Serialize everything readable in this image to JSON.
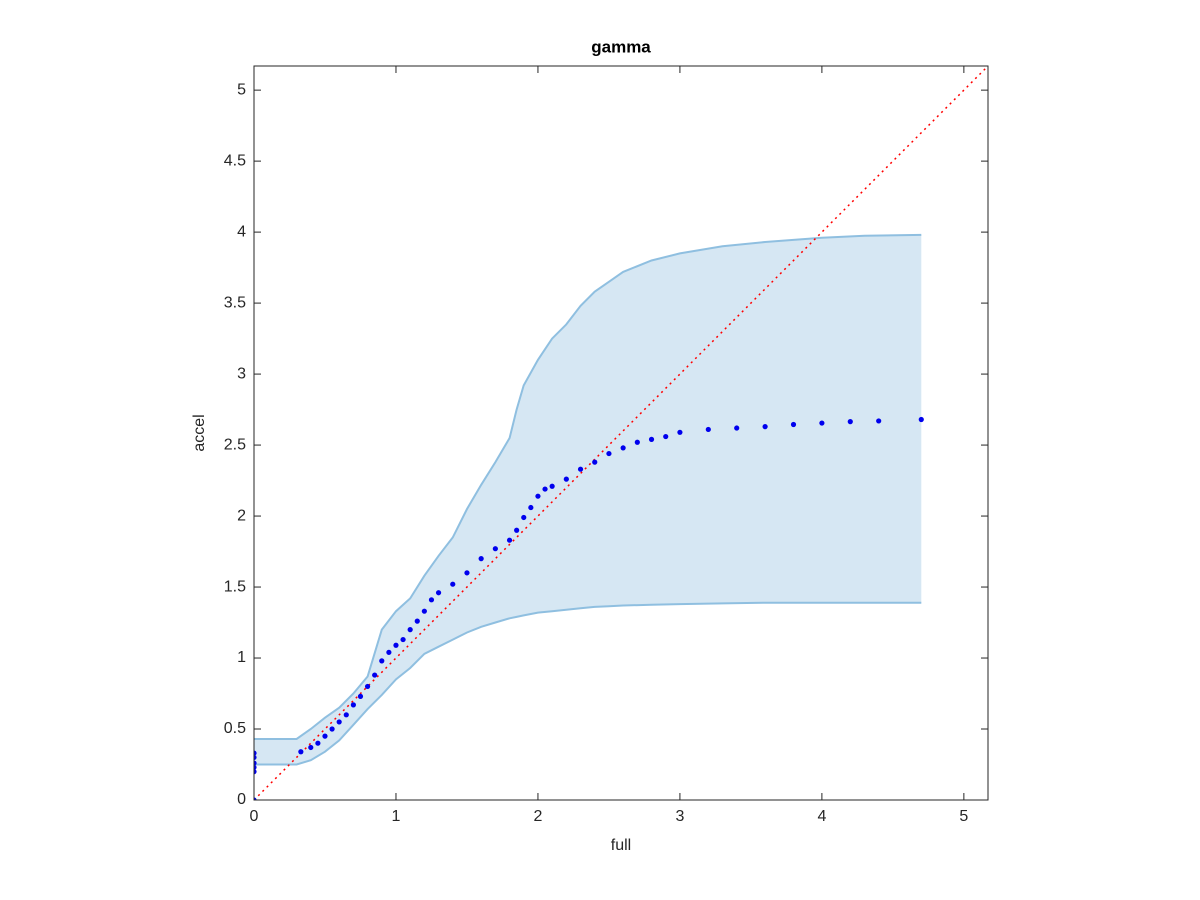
{
  "chart_data": {
    "type": "scatter",
    "title": "gamma",
    "x_label": "full",
    "y_label": "accel",
    "xlim": [
      0,
      5.17
    ],
    "ylim": [
      0,
      5.17
    ],
    "xticks": [
      0,
      1,
      2,
      3,
      4,
      5
    ],
    "yticks": [
      0,
      0.5,
      1,
      1.5,
      2,
      2.5,
      3,
      3.5,
      4,
      4.5,
      5
    ],
    "band": {
      "color": "#8fbfe0",
      "fill": "#d6e7f3",
      "x": [
        0,
        0.3,
        0.4,
        0.5,
        0.6,
        0.7,
        0.8,
        0.9,
        1.0,
        1.1,
        1.2,
        1.3,
        1.4,
        1.5,
        1.6,
        1.7,
        1.8,
        1.85,
        1.9,
        2.0,
        2.1,
        2.2,
        2.3,
        2.4,
        2.5,
        2.6,
        2.8,
        3.0,
        3.3,
        3.6,
        4.0,
        4.3,
        4.7
      ],
      "upper": [
        0.43,
        0.43,
        0.5,
        0.58,
        0.65,
        0.75,
        0.87,
        1.2,
        1.33,
        1.42,
        1.58,
        1.72,
        1.85,
        2.05,
        2.22,
        2.38,
        2.55,
        2.75,
        2.92,
        3.1,
        3.25,
        3.35,
        3.48,
        3.58,
        3.65,
        3.72,
        3.8,
        3.85,
        3.9,
        3.93,
        3.96,
        3.975,
        3.98
      ],
      "lower": [
        0.25,
        0.25,
        0.28,
        0.34,
        0.42,
        0.53,
        0.64,
        0.74,
        0.85,
        0.93,
        1.03,
        1.08,
        1.13,
        1.18,
        1.22,
        1.25,
        1.28,
        1.29,
        1.3,
        1.32,
        1.33,
        1.34,
        1.35,
        1.36,
        1.365,
        1.37,
        1.375,
        1.38,
        1.385,
        1.39,
        1.39,
        1.39,
        1.39
      ]
    },
    "reference_line": {
      "color": "#ff0000",
      "x": [
        0,
        5.17
      ],
      "values": [
        0,
        5.17
      ]
    },
    "series": [
      {
        "color": "#0000ee",
        "x": [
          0,
          0,
          0,
          0,
          0,
          0,
          0.33,
          0.4,
          0.45,
          0.5,
          0.55,
          0.6,
          0.65,
          0.7,
          0.75,
          0.8,
          0.85,
          0.9,
          0.95,
          1.0,
          1.05,
          1.1,
          1.15,
          1.2,
          1.25,
          1.3,
          1.4,
          1.5,
          1.6,
          1.7,
          1.8,
          1.85,
          1.9,
          1.95,
          2.0,
          2.05,
          2.1,
          2.2,
          2.3,
          2.4,
          2.5,
          2.6,
          2.7,
          2.8,
          2.9,
          3.0,
          3.2,
          3.4,
          3.6,
          3.8,
          4.0,
          4.2,
          4.4,
          4.7
        ],
        "values": [
          0,
          0.2,
          0.23,
          0.26,
          0.3,
          0.33,
          0.34,
          0.37,
          0.4,
          0.45,
          0.5,
          0.55,
          0.6,
          0.67,
          0.73,
          0.8,
          0.88,
          0.98,
          1.04,
          1.09,
          1.13,
          1.2,
          1.26,
          1.33,
          1.41,
          1.46,
          1.52,
          1.6,
          1.7,
          1.77,
          1.83,
          1.9,
          1.99,
          2.06,
          2.14,
          2.19,
          2.21,
          2.26,
          2.33,
          2.38,
          2.44,
          2.48,
          2.52,
          2.54,
          2.56,
          2.59,
          2.61,
          2.62,
          2.63,
          2.645,
          2.655,
          2.665,
          2.67,
          2.68
        ]
      }
    ]
  }
}
